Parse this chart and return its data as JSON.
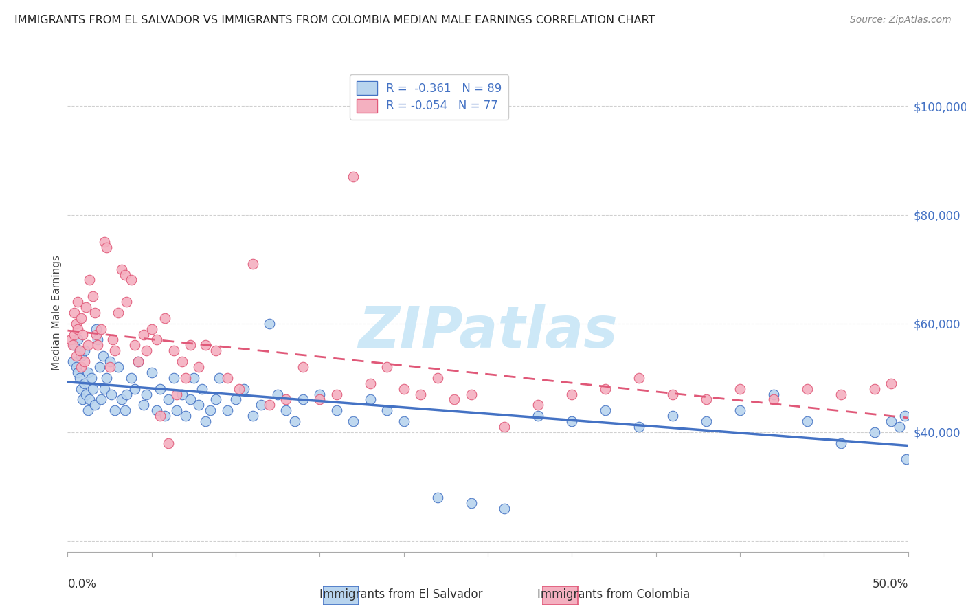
{
  "title": "IMMIGRANTS FROM EL SALVADOR VS IMMIGRANTS FROM COLOMBIA MEDIAN MALE EARNINGS CORRELATION CHART",
  "source": "Source: ZipAtlas.com",
  "ylabel": "Median Male Earnings",
  "y_ticks": [
    20000,
    40000,
    60000,
    80000,
    100000
  ],
  "y_tick_labels": [
    "",
    "$40,000",
    "$60,000",
    "$80,000",
    "$100,000"
  ],
  "x_range": [
    0.0,
    0.5
  ],
  "y_range": [
    18000,
    106000
  ],
  "r_el_salvador": -0.361,
  "n_el_salvador": 89,
  "r_colombia": -0.054,
  "n_colombia": 77,
  "color_es_fill": "#b8d4ee",
  "color_es_edge": "#4472c4",
  "color_col_fill": "#f4b0c0",
  "color_col_edge": "#e05878",
  "color_es_line": "#4472c4",
  "color_col_line": "#e05878",
  "watermark_color": "#cde8f7",
  "el_salvador_x": [
    0.003,
    0.004,
    0.005,
    0.006,
    0.006,
    0.007,
    0.007,
    0.008,
    0.008,
    0.009,
    0.01,
    0.01,
    0.011,
    0.012,
    0.012,
    0.013,
    0.014,
    0.015,
    0.016,
    0.017,
    0.018,
    0.019,
    0.02,
    0.021,
    0.022,
    0.023,
    0.025,
    0.026,
    0.028,
    0.03,
    0.032,
    0.034,
    0.035,
    0.038,
    0.04,
    0.042,
    0.045,
    0.047,
    0.05,
    0.053,
    0.055,
    0.058,
    0.06,
    0.063,
    0.065,
    0.068,
    0.07,
    0.073,
    0.075,
    0.078,
    0.08,
    0.082,
    0.085,
    0.088,
    0.09,
    0.095,
    0.1,
    0.105,
    0.11,
    0.115,
    0.12,
    0.125,
    0.13,
    0.135,
    0.14,
    0.15,
    0.16,
    0.17,
    0.18,
    0.19,
    0.2,
    0.22,
    0.24,
    0.26,
    0.28,
    0.3,
    0.32,
    0.34,
    0.36,
    0.38,
    0.4,
    0.42,
    0.44,
    0.46,
    0.48,
    0.49,
    0.495,
    0.498,
    0.499
  ],
  "el_salvador_y": [
    53000,
    56000,
    52000,
    51000,
    57000,
    50000,
    55000,
    48000,
    54000,
    46000,
    49000,
    55000,
    47000,
    44000,
    51000,
    46000,
    50000,
    48000,
    45000,
    59000,
    57000,
    52000,
    46000,
    54000,
    48000,
    50000,
    53000,
    47000,
    44000,
    52000,
    46000,
    44000,
    47000,
    50000,
    48000,
    53000,
    45000,
    47000,
    51000,
    44000,
    48000,
    43000,
    46000,
    50000,
    44000,
    47000,
    43000,
    46000,
    50000,
    45000,
    48000,
    42000,
    44000,
    46000,
    50000,
    44000,
    46000,
    48000,
    43000,
    45000,
    60000,
    47000,
    44000,
    42000,
    46000,
    47000,
    44000,
    42000,
    46000,
    44000,
    42000,
    28000,
    27000,
    26000,
    43000,
    42000,
    44000,
    41000,
    43000,
    42000,
    44000,
    47000,
    42000,
    38000,
    40000,
    42000,
    41000,
    43000,
    35000
  ],
  "colombia_x": [
    0.002,
    0.003,
    0.004,
    0.004,
    0.005,
    0.005,
    0.006,
    0.006,
    0.007,
    0.008,
    0.008,
    0.009,
    0.01,
    0.011,
    0.012,
    0.013,
    0.015,
    0.016,
    0.017,
    0.018,
    0.02,
    0.022,
    0.023,
    0.025,
    0.027,
    0.028,
    0.03,
    0.032,
    0.034,
    0.035,
    0.038,
    0.04,
    0.042,
    0.045,
    0.047,
    0.05,
    0.053,
    0.055,
    0.058,
    0.06,
    0.063,
    0.065,
    0.068,
    0.07,
    0.073,
    0.078,
    0.082,
    0.088,
    0.095,
    0.102,
    0.11,
    0.12,
    0.13,
    0.14,
    0.15,
    0.16,
    0.17,
    0.18,
    0.19,
    0.2,
    0.21,
    0.22,
    0.23,
    0.24,
    0.26,
    0.28,
    0.3,
    0.32,
    0.34,
    0.36,
    0.38,
    0.4,
    0.42,
    0.44,
    0.46,
    0.48,
    0.49
  ],
  "colombia_y": [
    57000,
    56000,
    62000,
    58000,
    54000,
    60000,
    64000,
    59000,
    55000,
    61000,
    52000,
    58000,
    53000,
    63000,
    56000,
    68000,
    65000,
    62000,
    58000,
    56000,
    59000,
    75000,
    74000,
    52000,
    57000,
    55000,
    62000,
    70000,
    69000,
    64000,
    68000,
    56000,
    53000,
    58000,
    55000,
    59000,
    57000,
    43000,
    61000,
    38000,
    55000,
    47000,
    53000,
    50000,
    56000,
    52000,
    56000,
    55000,
    50000,
    48000,
    71000,
    45000,
    46000,
    52000,
    46000,
    47000,
    87000,
    49000,
    52000,
    48000,
    47000,
    50000,
    46000,
    47000,
    41000,
    45000,
    47000,
    48000,
    50000,
    47000,
    46000,
    48000,
    46000,
    48000,
    47000,
    48000,
    49000
  ]
}
